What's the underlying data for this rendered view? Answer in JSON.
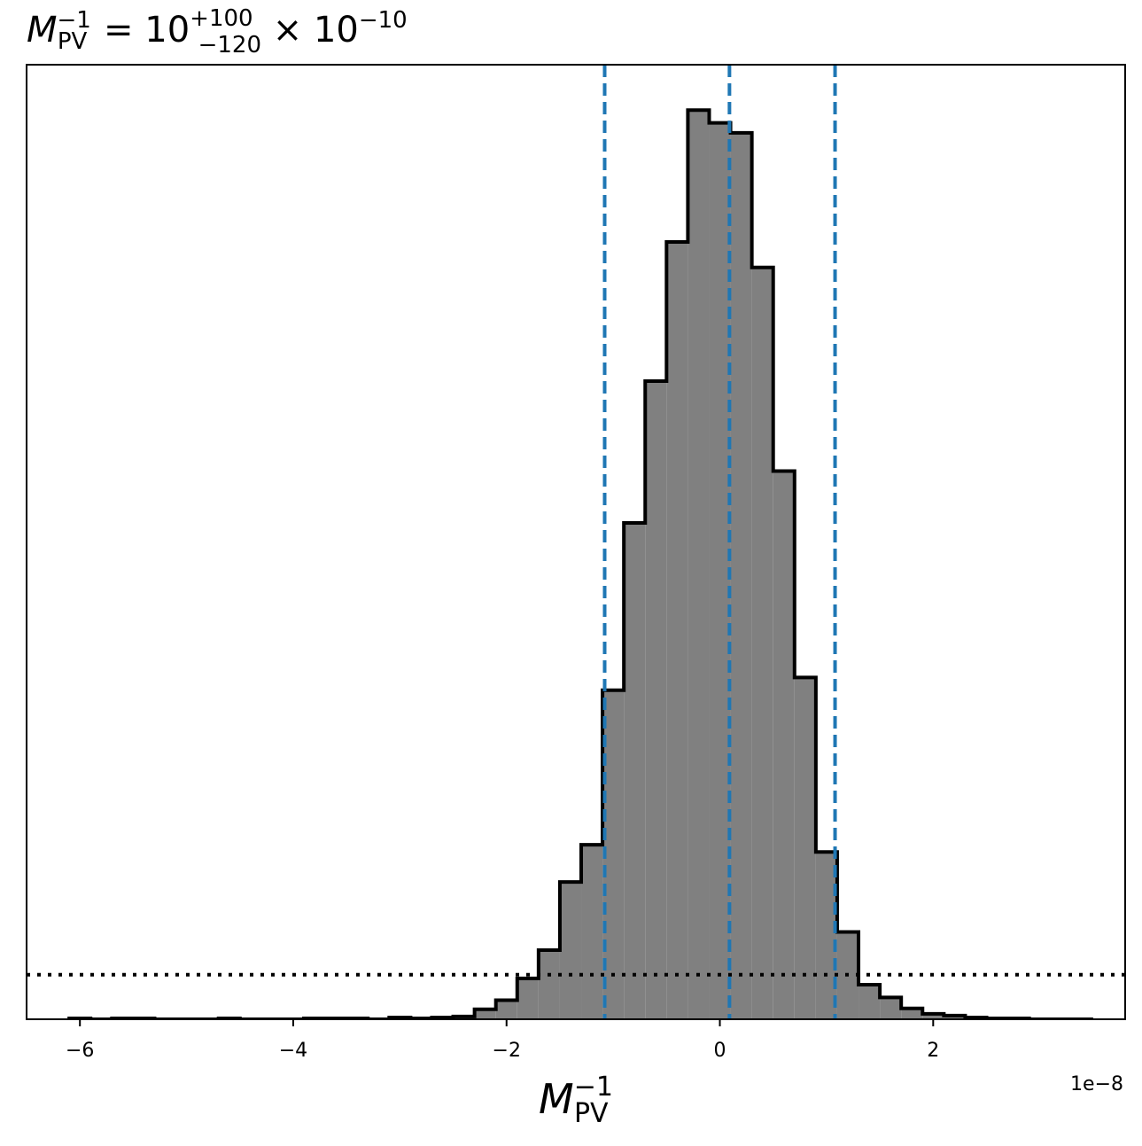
{
  "chart_data": {
    "type": "bar",
    "title": {
      "text": "M",
      "sup1": "−1",
      "sub1": "PV",
      "eq": " = 10",
      "sup2": "+100",
      "sub2": "−120",
      "mult": " × 10",
      "sup3": "−10"
    },
    "xlabel": {
      "text": "M",
      "sup": "−1",
      "sub": "PV"
    },
    "x_offset_label": "1e−8",
    "xlim": [
      -6.5,
      3.8
    ],
    "ylim": [
      0,
      1.05
    ],
    "xticks": [
      {
        "value": -6,
        "label": "−6"
      },
      {
        "value": -4,
        "label": "−4"
      },
      {
        "value": -2,
        "label": "−2"
      },
      {
        "value": 0,
        "label": "0"
      },
      {
        "value": 2,
        "label": "2"
      }
    ],
    "histogram": {
      "fill_color": "#808080",
      "edge_color": "#000000",
      "bin_edges": [
        -6.1,
        -5.9,
        -5.7,
        -5.5,
        -5.3,
        -5.1,
        -4.9,
        -4.7,
        -4.5,
        -4.3,
        -4.1,
        -3.9,
        -3.7,
        -3.5,
        -3.3,
        -3.1,
        -2.9,
        -2.7,
        -2.5,
        -2.3,
        -2.1,
        -1.9,
        -1.7,
        -1.5,
        -1.3,
        -1.1,
        -0.9,
        -0.7,
        -0.5,
        -0.3,
        -0.1,
        0.1,
        0.3,
        0.5,
        0.7,
        0.9,
        1.1,
        1.3,
        1.5,
        1.7,
        1.9,
        2.1,
        2.3,
        2.5,
        2.7,
        2.9,
        3.1,
        3.3,
        3.5
      ],
      "counts": [
        0.001,
        0.0,
        0.001,
        0.001,
        0.0,
        0.0,
        0.0,
        0.001,
        0.0,
        0.0,
        0.0,
        0.001,
        0.001,
        0.001,
        0.0,
        0.002,
        0.001,
        0.002,
        0.003,
        0.011,
        0.021,
        0.045,
        0.076,
        0.151,
        0.192,
        0.362,
        0.546,
        0.702,
        0.855,
        1.0,
        0.986,
        0.975,
        0.827,
        0.603,
        0.376,
        0.184,
        0.096,
        0.038,
        0.024,
        0.012,
        0.006,
        0.004,
        0.002,
        0.001,
        0.001,
        0.0,
        0.0,
        0.0
      ]
    },
    "vlines": {
      "values": [
        -1.08,
        0.09,
        1.08
      ],
      "color": "#1f77b4",
      "style": "dashed"
    },
    "hline": {
      "value": 0.049,
      "color": "#000000",
      "style": "dotted"
    },
    "grid": false,
    "yticks_visible": false
  }
}
